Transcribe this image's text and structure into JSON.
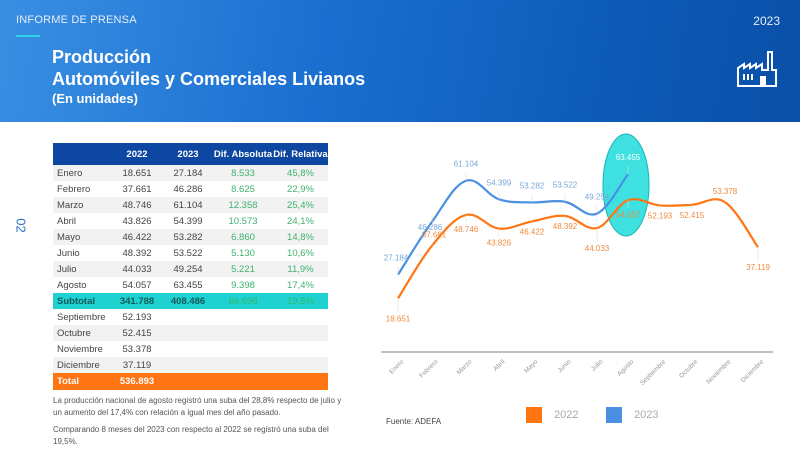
{
  "header": {
    "kicker": "INFORME DE PRENSA",
    "year": "2023",
    "title_line1": "Producción",
    "title_line2": "Automóviles y Comerciales Livianos",
    "title_line3": "(En unidades)",
    "icon": "factory-icon"
  },
  "page_number": "02",
  "table": {
    "headers": [
      "",
      "2022",
      "2023",
      "Dif. Absoluta",
      "Dif. Relativa"
    ],
    "rows": [
      {
        "month": "Enero",
        "y2022": "18.651",
        "y2023": "27.184",
        "abs": "8.533",
        "rel": "45,8%"
      },
      {
        "month": "Febrero",
        "y2022": "37.661",
        "y2023": "46.286",
        "abs": "8.625",
        "rel": "22,9%"
      },
      {
        "month": "Marzo",
        "y2022": "48.746",
        "y2023": "61.104",
        "abs": "12.358",
        "rel": "25,4%"
      },
      {
        "month": "Abril",
        "y2022": "43.826",
        "y2023": "54.399",
        "abs": "10.573",
        "rel": "24,1%"
      },
      {
        "month": "Mayo",
        "y2022": "46.422",
        "y2023": "53.282",
        "abs": "6.860",
        "rel": "14,8%"
      },
      {
        "month": "Junio",
        "y2022": "48.392",
        "y2023": "53.522",
        "abs": "5.130",
        "rel": "10,6%"
      },
      {
        "month": "Julio",
        "y2022": "44.033",
        "y2023": "49.254",
        "abs": "5.221",
        "rel": "11,9%"
      },
      {
        "month": "Agosto",
        "y2022": "54.057",
        "y2023": "63.455",
        "abs": "9.398",
        "rel": "17,4%"
      }
    ],
    "subtotal": {
      "label": "Subtotal",
      "y2022": "341.788",
      "y2023": "408.486",
      "abs": "66.698",
      "rel": "19,5%"
    },
    "rest": [
      {
        "month": "Septiembre",
        "y2022": "52.193"
      },
      {
        "month": "Octubre",
        "y2022": "52.415"
      },
      {
        "month": "Noviembre",
        "y2022": "53.378"
      },
      {
        "month": "Diciembre",
        "y2022": "37.119"
      }
    ],
    "total": {
      "label": "Total",
      "y2022": "536.893"
    }
  },
  "notes": [
    "La producción nacional de agosto registró una suba del 28,8% respecto de julio y un aumento del 17,4% con relación a igual mes del año pasado.",
    "Comparando 8 meses del 2023 con respecto al 2022 se registró una suba del 19,5%."
  ],
  "source": "Fuente: ADEFA",
  "colors": {
    "header_blue": "#0d47a1",
    "series_2022": "#ff7413",
    "series_2023": "#4a90e2",
    "subtotal_teal": "#1fd1d1",
    "positive_green": "#3cb371",
    "highlight_ellipse": "#3ee0e0"
  },
  "chart_data": {
    "type": "line",
    "title": "",
    "xlabel": "",
    "ylabel": "",
    "categories": [
      "Enero",
      "Febrero",
      "Marzo",
      "Abril",
      "Mayo",
      "Junio",
      "Julio",
      "Agosto",
      "Septiembre",
      "Octubre",
      "Noviembre",
      "Diciembre"
    ],
    "series": [
      {
        "name": "2022",
        "color": "#ff7413",
        "values": [
          18651,
          37661,
          48746,
          43826,
          46422,
          48392,
          44033,
          54057,
          52193,
          52415,
          53378,
          37119
        ],
        "labels": [
          "18.651",
          "37.661",
          "48.746",
          "43.826",
          "46.422",
          "48.392",
          "44.033",
          "54.057",
          "52.193",
          "52.415",
          "53.378",
          "37.119"
        ]
      },
      {
        "name": "2023",
        "color": "#4a90e2",
        "values": [
          27184,
          46286,
          61104,
          54399,
          53282,
          53522,
          49254,
          63455
        ],
        "labels": [
          "27.184",
          "46.286",
          "61.104",
          "54.399",
          "53.282",
          "53.522",
          "49.254",
          "63.455"
        ]
      }
    ],
    "legend": [
      "2022",
      "2023"
    ],
    "legend_position": "bottom",
    "grid": false,
    "annotation": "Agosto highlighted with teal ellipse"
  }
}
